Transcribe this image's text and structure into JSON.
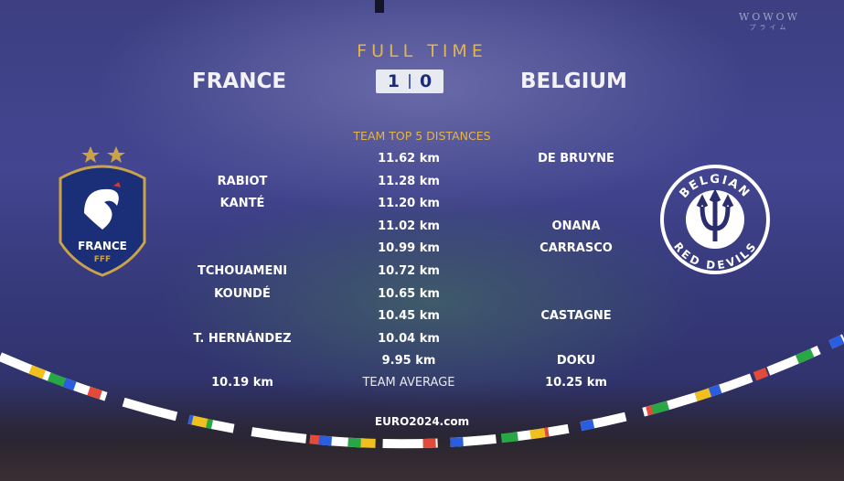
{
  "broadcaster": {
    "name": "WOWOW",
    "sub": "プライム"
  },
  "header": {
    "status": "FULL TIME",
    "home": "FRANCE",
    "away": "BELGIUM",
    "home_score": "1",
    "away_score": "0"
  },
  "section_title": "TEAM TOP 5 DISTANCES",
  "rows": [
    {
      "france": "",
      "distance": "11.62 km",
      "belgium": "DE BRUYNE"
    },
    {
      "france": "RABIOT",
      "distance": "11.28 km",
      "belgium": ""
    },
    {
      "france": "KANTÉ",
      "distance": "11.20 km",
      "belgium": ""
    },
    {
      "france": "",
      "distance": "11.02 km",
      "belgium": "ONANA"
    },
    {
      "france": "",
      "distance": "10.99 km",
      "belgium": "CARRASCO"
    },
    {
      "france": "TCHOUAMENI",
      "distance": "10.72 km",
      "belgium": ""
    },
    {
      "france": "KOUNDÉ",
      "distance": "10.65 km",
      "belgium": ""
    },
    {
      "france": "",
      "distance": "10.45 km",
      "belgium": "CASTAGNE"
    },
    {
      "france": "T. HERNÁNDEZ",
      "distance": "10.04 km",
      "belgium": ""
    },
    {
      "france": "",
      "distance": "9.95 km",
      "belgium": "DOKU"
    }
  ],
  "average": {
    "france": "10.19 km",
    "label": "TEAM AVERAGE",
    "belgium": "10.25 km"
  },
  "logos": {
    "france": {
      "text": "FRANCE",
      "sub": "FFF"
    },
    "belgium": {
      "top": "BELGIAN",
      "bottom": "RED DEVILS"
    }
  },
  "site": "EURO2024.com",
  "colors": {
    "gold": "#e3b54a",
    "score_text": "#1d2a7a",
    "france_blue": "#1b2f78"
  }
}
